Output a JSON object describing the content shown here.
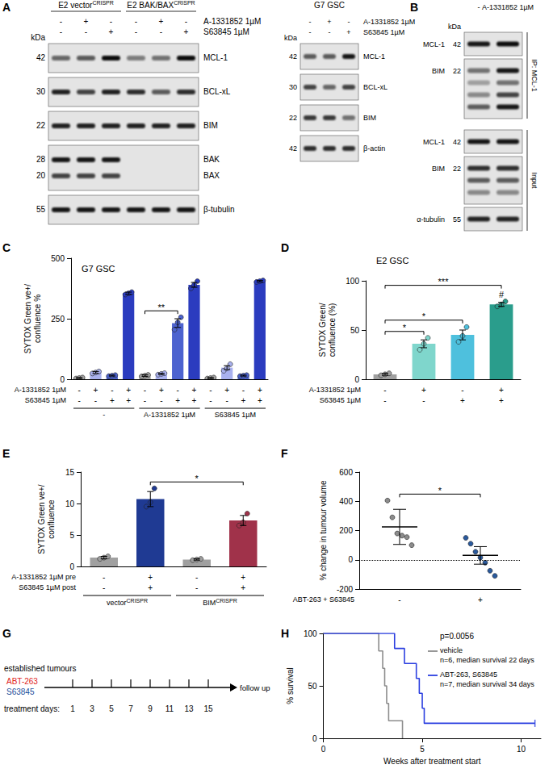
{
  "blots": [
    {
      "panel": "A",
      "groups": [
        {
          "label": "E2 vector",
          "sup": "CRISPR",
          "span": 3
        },
        {
          "label": "E2 BAK/BAX",
          "sup": "CRISPR",
          "span": 3
        }
      ],
      "treatments": [
        {
          "label": "A-1331852 1µM",
          "marks": [
            "-",
            "+",
            "-",
            "-",
            "+",
            "-"
          ]
        },
        {
          "label": "S63845 1µM",
          "marks": [
            "-",
            "-",
            "+",
            "-",
            "-",
            "+"
          ]
        }
      ],
      "kda_label": "kDa",
      "sections": [
        {
          "rows": [
            {
              "bands": [
                {
                  "label": "MCL-1",
                  "kda": 42,
                  "lanes": [
                    0.55,
                    0.6,
                    0.95,
                    0.45,
                    0.5,
                    0.95
                  ]
                }
              ]
            },
            {
              "bands": [
                {
                  "label": "BCL-xL",
                  "kda": 30,
                  "lanes": [
                    0.85,
                    0.7,
                    0.85,
                    0.8,
                    0.6,
                    0.8
                  ]
                }
              ]
            },
            {
              "bands": [
                {
                  "label": "BIM",
                  "kda": 22,
                  "lanes": [
                    0.85,
                    0.85,
                    0.85,
                    0.85,
                    0.85,
                    0.85
                  ]
                }
              ]
            },
            {
              "bands": [
                {
                  "label": "BAK",
                  "kda": 28,
                  "lanes": [
                    0.9,
                    0.9,
                    0.9,
                    0,
                    0,
                    0
                  ]
                },
                {
                  "label": "BAX",
                  "kda": 20,
                  "lanes": [
                    0.7,
                    0.7,
                    0.7,
                    0,
                    0,
                    0
                  ]
                }
              ]
            },
            {
              "bands": [
                {
                  "label": "β-tubulin",
                  "kda": 55,
                  "lanes": [
                    0.9,
                    0.9,
                    0.9,
                    0.9,
                    0.9,
                    0.9
                  ]
                }
              ]
            }
          ]
        }
      ]
    },
    {
      "title": "G7 GSC",
      "treatments": [
        {
          "label": "A-1331852 1µM",
          "marks": [
            "-",
            "+",
            "-"
          ]
        },
        {
          "label": "S63845 1µM",
          "marks": [
            "-",
            "-",
            "+"
          ]
        }
      ],
      "kda_label": "kDa",
      "sections": [
        {
          "rows": [
            {
              "bands": [
                {
                  "label": "MCL-1",
                  "kda": 42,
                  "lanes": [
                    0.6,
                    0.6,
                    0.9
                  ]
                }
              ]
            },
            {
              "bands": [
                {
                  "label": "BCL-xL",
                  "kda": 30,
                  "lanes": [
                    0.7,
                    0.55,
                    0.7
                  ]
                }
              ]
            },
            {
              "bands": [
                {
                  "label": "BIM",
                  "kda": 22,
                  "lanes": [
                    0.75,
                    0.75,
                    0.5
                  ]
                }
              ]
            },
            {
              "bands": [
                {
                  "label": "β-actin",
                  "kda": 42,
                  "lanes": [
                    0.8,
                    0.8,
                    0.8
                  ]
                }
              ]
            }
          ]
        }
      ]
    },
    {
      "panel": "B",
      "treatments": [
        {
          "marks": [
            "-",
            "A-1331852 1µM"
          ]
        }
      ],
      "kda_label": "kDa",
      "sections": [
        {
          "label": "IP: MCL-1",
          "rows": [
            {
              "bands": [
                {
                  "label": "MCL-1",
                  "kda": 42,
                  "lanes": [
                    0.9,
                    0.95
                  ]
                }
              ]
            },
            {
              "bands": [
                {
                  "label": "BIM",
                  "kda": 22,
                  "lanes": [
                    0.5,
                    0.9
                  ]
                },
                {
                  "label": null,
                  "kda": null,
                  "lanes": [
                    0.3,
                    0.5
                  ]
                },
                {
                  "label": null,
                  "kda": null,
                  "lanes": [
                    0.4,
                    0.7
                  ]
                },
                {
                  "label": null,
                  "kda": null,
                  "lanes": [
                    0.6,
                    0.9
                  ]
                }
              ]
            }
          ]
        },
        {
          "label": "Input",
          "rows": [
            {
              "bands": [
                {
                  "label": "MCL-1",
                  "kda": 42,
                  "lanes": [
                    0.9,
                    0.9
                  ]
                }
              ]
            },
            {
              "bands": [
                {
                  "label": "BIM",
                  "kda": 22,
                  "lanes": [
                    0.8,
                    0.8
                  ]
                },
                {
                  "label": null,
                  "kda": null,
                  "lanes": [
                    0.6,
                    0.6
                  ]
                },
                {
                  "label": null,
                  "kda": null,
                  "lanes": [
                    0.4,
                    0.4
                  ]
                }
              ]
            },
            {
              "bands": [
                {
                  "label": "α-tubulin",
                  "kda": 55,
                  "lanes": [
                    0.85,
                    0.85
                  ]
                }
              ]
            }
          ]
        }
      ]
    }
  ],
  "chart_data": [
    {
      "panel": "C",
      "type": "bar",
      "title": "G7 GSC",
      "y_label": "SYTOX Green ve+/\nconfluence %",
      "categories": [
        null,
        null,
        null,
        null,
        null,
        null,
        null,
        null,
        null,
        null,
        null,
        null
      ],
      "values": [
        5,
        28,
        15,
        355,
        15,
        22,
        232,
        390,
        5,
        48,
        15,
        405
      ],
      "errors": [
        2,
        4,
        2,
        5,
        3,
        3,
        18,
        10,
        2,
        8,
        2,
        3
      ],
      "points": [
        [
          3,
          5,
          7
        ],
        [
          24,
          28,
          32
        ],
        [
          13,
          15,
          17
        ],
        [
          350,
          355,
          360
        ],
        [
          12,
          15,
          18
        ],
        [
          19,
          22,
          25
        ],
        [
          205,
          235,
          256
        ],
        [
          375,
          390,
          405
        ],
        [
          3,
          5,
          7
        ],
        [
          35,
          45,
          62
        ],
        [
          13,
          15,
          17
        ],
        [
          402,
          405,
          408
        ]
      ],
      "colors": [
        "#a0a0a0",
        "#a9b1ef",
        "#4d63cf",
        "#2b3cbf",
        "#a0a0a0",
        "#a9b1ef",
        "#4d63cf",
        "#2b3cbf",
        "#a0a0a0",
        "#a9b1ef",
        "#4d63cf",
        "#2b3cbf"
      ],
      "ylim": [
        0,
        500
      ],
      "yticks": [
        0,
        250,
        500
      ],
      "grid": false,
      "treatments": [
        {
          "label": "A-1331852 1µM",
          "marks": [
            "-",
            "+",
            "-",
            "+",
            "-",
            "+",
            "-",
            "+",
            "-",
            "+",
            "-",
            "+"
          ]
        },
        {
          "label": "S63845 1µM",
          "marks": [
            "-",
            "-",
            "+",
            "+",
            "-",
            "-",
            "+",
            "+",
            "-",
            "-",
            "+",
            "+"
          ]
        }
      ],
      "groups": [
        {
          "label": "-",
          "span": 4
        },
        {
          "label": "A-1331852 1µM",
          "span": 4
        },
        {
          "label": "S63845 1µM",
          "span": 4
        }
      ],
      "significance": [
        {
          "from": 4,
          "to": 6,
          "label": "**"
        }
      ]
    },
    {
      "panel": "D",
      "type": "bar",
      "title": "E2 GSC",
      "y_label": "SYTOX Green/\nconfluence (%)",
      "categories": [
        null,
        null,
        null,
        null
      ],
      "values": [
        5,
        36,
        45,
        76
      ],
      "errors": [
        1,
        4,
        5,
        2
      ],
      "points": [
        [
          4,
          5,
          6
        ],
        [
          30,
          36,
          42
        ],
        [
          38,
          44,
          53
        ],
        [
          74,
          76,
          79
        ]
      ],
      "colors": [
        "#a0a0a0",
        "#7fd6cc",
        "#4ec0dd",
        "#2a9d8c"
      ],
      "ylim": [
        0,
        100
      ],
      "yticks": [
        0,
        50,
        100
      ],
      "grid": false,
      "treatments": [
        {
          "label": "A-1331852 1µM",
          "marks": [
            "-",
            "+",
            "-",
            "+"
          ]
        },
        {
          "label": "S63845 1µM",
          "marks": [
            "-",
            "-",
            "+",
            "+"
          ]
        }
      ],
      "annotations": [
        {
          "index": 3,
          "label": "#"
        }
      ],
      "significance": [
        {
          "from": 0,
          "to": 1,
          "label": "*"
        },
        {
          "from": 0,
          "to": 2,
          "label": "*"
        },
        {
          "from": 0,
          "to": 3,
          "label": "***"
        }
      ]
    },
    {
      "panel": "E",
      "type": "bar",
      "y_label": "SYTOX Green ve+/\nconfluence",
      "categories": [
        null,
        null,
        null,
        null
      ],
      "values": [
        1.4,
        10.7,
        1.1,
        7.3
      ],
      "errors": [
        0.2,
        1.2,
        0.1,
        0.8
      ],
      "points": [
        [
          1.2,
          1.4,
          1.6
        ],
        [
          9.5,
          10.2,
          12.4
        ],
        [
          1.0,
          1.1,
          1.2
        ],
        [
          6.5,
          7.0,
          8.4
        ]
      ],
      "colors": [
        "#a0a0a0",
        "#1f3a93",
        "#a0a0a0",
        "#a0324a"
      ],
      "ylim": [
        0,
        15
      ],
      "yticks": [
        0,
        5,
        10,
        15
      ],
      "grid": false,
      "treatments": [
        {
          "label": "A-1331852 1µM pre",
          "marks": [
            "-",
            "+",
            "-",
            "+"
          ]
        },
        {
          "label": "S63845 1µM post",
          "marks": [
            "-",
            "+",
            "-",
            "+"
          ]
        }
      ],
      "groups": [
        {
          "label": "vector",
          "sup": "CRISPR",
          "span": 2
        },
        {
          "label": "BIM",
          "sup": "CRISPR",
          "span": 2
        }
      ],
      "significance": [
        {
          "from": 1,
          "to": 3,
          "label": "*"
        }
      ]
    },
    {
      "panel": "F",
      "type": "scatter",
      "y_label": "% change in tumour volume",
      "categories": [
        null,
        null
      ],
      "values": [
        225,
        30
      ],
      "errors": [
        120,
        60
      ],
      "points": [
        [
          405,
          290,
          180,
          165,
          155,
          100
        ],
        [
          150,
          110,
          55,
          15,
          -20,
          -75,
          -110
        ]
      ],
      "colors": [
        "#8c8c8c",
        "#2a5a9e"
      ],
      "ylim": [
        -200,
        600
      ],
      "yticks": [
        -200,
        0,
        200,
        400,
        600
      ],
      "grid": false,
      "reference_line": 0,
      "treatments": [
        {
          "label": "ABT-263 + S63845",
          "marks": [
            "-",
            "+"
          ]
        }
      ],
      "significance": [
        {
          "from": 0,
          "to": 1,
          "label": "*"
        }
      ]
    },
    {
      "panel": "H",
      "type": "line",
      "line_style": "step",
      "x_label": "Weeks after treatment start",
      "y_label": "% survival",
      "xlim": [
        0,
        11
      ],
      "xticks": [
        0,
        5,
        10
      ],
      "ylim": [
        0,
        100
      ],
      "yticks": [
        0,
        50,
        100
      ],
      "grid": false,
      "annotation": "p=0.0056",
      "series": [
        {
          "name": "vehicle",
          "legend_text": "n=6, median survival 22 days",
          "color": "#8c8c8c",
          "x": [
            0,
            2.8,
            3.0,
            3.1,
            3.2,
            3.3,
            4.0
          ],
          "values": [
            100,
            83.3,
            66.7,
            50,
            33.3,
            16.7,
            0
          ]
        },
        {
          "name": "ABT-263, S63845",
          "legend_text": "n=7, median survival 34 days",
          "color": "#2b3fe0",
          "x": [
            0,
            3.6,
            4.1,
            4.7,
            4.85,
            5.0,
            5.1,
            10.7
          ],
          "values": [
            100,
            85.7,
            71.4,
            57.1,
            42.9,
            28.6,
            14.3,
            14.3
          ],
          "censored": [
            10.7
          ]
        }
      ]
    }
  ],
  "diagram": {
    "panel": "G",
    "label": "established tumours",
    "drugs": [
      {
        "name": "ABT-263",
        "color": "#e0231c"
      },
      {
        "name": "S63845",
        "color": "#1d4f9c"
      }
    ],
    "days_label": "treatment days:",
    "days": [
      1,
      3,
      5,
      7,
      9,
      11,
      13,
      15
    ],
    "end_label": "follow up"
  }
}
